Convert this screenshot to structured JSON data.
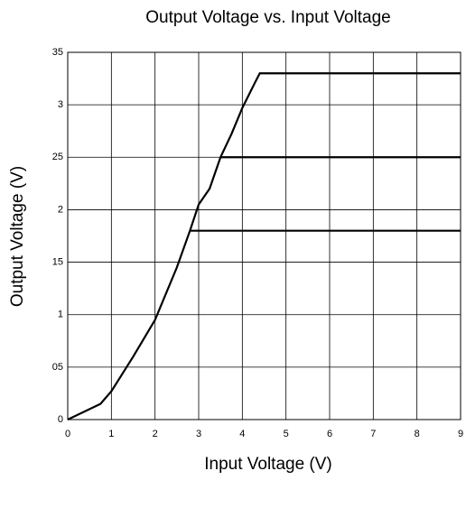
{
  "chart_data": {
    "type": "line",
    "title": "Output Voltage vs. Input Voltage",
    "x_label": "Input Voltage (V)",
    "y_label": "Output  Voltage (V)",
    "xlim": [
      0,
      9
    ],
    "xticks": [
      0,
      1,
      2,
      3,
      4,
      5,
      6,
      7,
      8,
      9
    ],
    "ylim": [
      0,
      3.5
    ],
    "yticks": [
      0,
      {
        "value": 0.5,
        "label": "05"
      },
      1,
      {
        "value": 1.5,
        "label": "15"
      },
      2,
      {
        "value": 2.5,
        "label": "25"
      },
      3,
      {
        "value": 3.5,
        "label": "35"
      }
    ],
    "grid": true,
    "series": [
      {
        "color": "#000000",
        "x": [
          0,
          0.75,
          1,
          1.5,
          2,
          2.5,
          2.8,
          3,
          3.25,
          3.5,
          3.75,
          4,
          4.3,
          4.4,
          9
        ],
        "values": [
          0,
          0.15,
          0.27,
          0.6,
          0.95,
          1.45,
          1.8,
          2.05,
          2.2,
          2.5,
          2.72,
          2.97,
          3.22,
          3.3,
          3.3
        ]
      },
      {
        "color": "#000000",
        "x": [
          3.5,
          9
        ],
        "values": [
          2.5,
          2.5
        ]
      },
      {
        "color": "#000000",
        "x": [
          2.8,
          9
        ],
        "values": [
          1.8,
          1.8
        ]
      }
    ]
  }
}
